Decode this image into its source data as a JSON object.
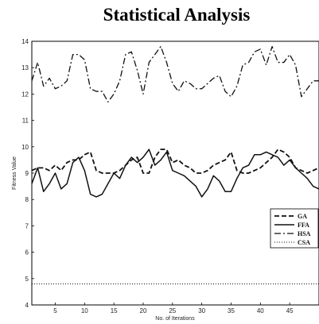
{
  "chart_data": {
    "type": "line",
    "title": "Statistical Analysis",
    "xlabel": "No. of Iterations",
    "ylabel": "Fitness Value",
    "xlim": [
      1,
      50
    ],
    "ylim": [
      4,
      14
    ],
    "x_ticks": [
      5,
      10,
      15,
      20,
      25,
      30,
      35,
      40,
      45
    ],
    "y_ticks": [
      4,
      5,
      6,
      7,
      8,
      9,
      10,
      11,
      12,
      13,
      14
    ],
    "grid": false,
    "legend_position": "right",
    "x": [
      1,
      2,
      3,
      4,
      5,
      6,
      7,
      8,
      9,
      10,
      11,
      12,
      13,
      14,
      15,
      16,
      17,
      18,
      19,
      20,
      21,
      22,
      23,
      24,
      25,
      26,
      27,
      28,
      29,
      30,
      31,
      32,
      33,
      34,
      35,
      36,
      37,
      38,
      39,
      40,
      41,
      42,
      43,
      44,
      45,
      46,
      47,
      48,
      49,
      50
    ],
    "series": [
      {
        "name": "GA",
        "style": "dashed",
        "values": [
          9.1,
          9.2,
          9.2,
          9.1,
          9.3,
          9.1,
          9.4,
          9.5,
          9.5,
          9.7,
          9.8,
          9.1,
          9.0,
          9.0,
          9.0,
          9.1,
          9.3,
          9.5,
          9.6,
          9.0,
          9.0,
          9.6,
          9.9,
          9.9,
          9.4,
          9.5,
          9.3,
          9.2,
          9.0,
          9.0,
          9.1,
          9.3,
          9.4,
          9.5,
          9.8,
          9.1,
          9.0,
          9.0,
          9.1,
          9.2,
          9.4,
          9.6,
          9.9,
          9.8,
          9.6,
          9.2,
          9.1,
          9.0,
          9.1,
          9.2
        ]
      },
      {
        "name": "FFA",
        "style": "solid",
        "values": [
          8.6,
          9.2,
          8.3,
          8.6,
          9.0,
          8.4,
          8.6,
          9.4,
          9.6,
          9.1,
          8.2,
          8.1,
          8.2,
          8.6,
          9.0,
          8.8,
          9.3,
          9.6,
          9.4,
          9.6,
          9.9,
          9.3,
          9.5,
          9.8,
          9.1,
          9.0,
          8.9,
          8.7,
          8.5,
          8.1,
          8.4,
          8.9,
          8.7,
          8.3,
          8.3,
          8.8,
          9.2,
          9.3,
          9.7,
          9.7,
          9.8,
          9.7,
          9.6,
          9.3,
          9.5,
          9.2,
          9.0,
          8.8,
          8.5,
          8.4
        ]
      },
      {
        "name": "HSA",
        "style": "dashdot",
        "values": [
          12.5,
          13.2,
          12.3,
          12.6,
          12.2,
          12.3,
          12.5,
          13.5,
          13.5,
          13.3,
          12.2,
          12.1,
          12.1,
          11.7,
          12.0,
          12.5,
          13.5,
          13.6,
          12.9,
          12.0,
          13.2,
          13.5,
          13.8,
          13.2,
          12.4,
          12.1,
          12.5,
          12.4,
          12.2,
          12.2,
          12.4,
          12.6,
          12.7,
          12.1,
          11.9,
          12.3,
          13.1,
          13.2,
          13.6,
          13.7,
          13.1,
          13.8,
          13.2,
          13.2,
          13.5,
          13.1,
          11.9,
          12.2,
          12.5,
          12.5
        ]
      },
      {
        "name": "CSA",
        "style": "dotted",
        "values": [
          4.8,
          4.8,
          4.8,
          4.8,
          4.8,
          4.8,
          4.8,
          4.8,
          4.8,
          4.8,
          4.8,
          4.8,
          4.8,
          4.8,
          4.8,
          4.8,
          4.8,
          4.8,
          4.8,
          4.8,
          4.8,
          4.8,
          4.8,
          4.8,
          4.8,
          4.8,
          4.8,
          4.8,
          4.8,
          4.8,
          4.8,
          4.8,
          4.8,
          4.8,
          4.8,
          4.8,
          4.8,
          4.8,
          4.8,
          4.8,
          4.8,
          4.8,
          4.8,
          4.8,
          4.8,
          4.8,
          4.8,
          4.8,
          4.8,
          4.8
        ]
      }
    ]
  }
}
